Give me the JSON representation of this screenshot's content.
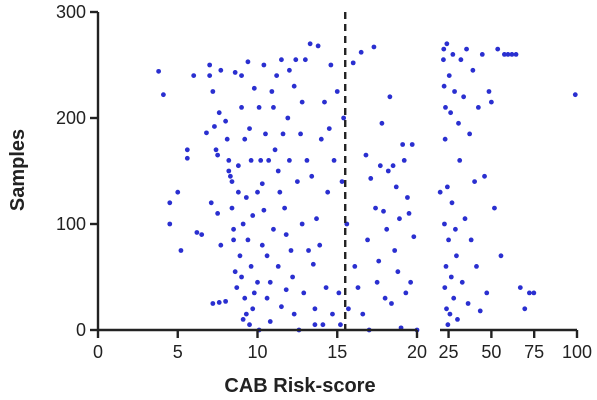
{
  "chart_data": {
    "type": "scatter",
    "xlabel": "CAB Risk-score",
    "ylabel": "Samples",
    "grid": false,
    "y_range": [
      0,
      300
    ],
    "y_ticks": [
      "0",
      "100",
      "200",
      "300"
    ],
    "x_segments": [
      {
        "range": [
          0,
          20
        ],
        "ticks": [
          "0",
          "5",
          "10",
          "15",
          "20"
        ]
      },
      {
        "range": [
          20,
          100
        ],
        "ticks": [
          "25",
          "50",
          "75",
          "100"
        ]
      }
    ],
    "cutoff_x": 15.5,
    "marker_color": "#2a2fd0",
    "points": [
      [
        3.8,
        244
      ],
      [
        4.1,
        222
      ],
      [
        4.5,
        120
      ],
      [
        4.5,
        100
      ],
      [
        5.0,
        130
      ],
      [
        5.2,
        75
      ],
      [
        5.6,
        170
      ],
      [
        5.6,
        162
      ],
      [
        6.0,
        240
      ],
      [
        6.2,
        92
      ],
      [
        6.5,
        90
      ],
      [
        6.8,
        186
      ],
      [
        7.0,
        250
      ],
      [
        7.0,
        240
      ],
      [
        7.1,
        120
      ],
      [
        7.2,
        225
      ],
      [
        7.3,
        192
      ],
      [
        7.4,
        170
      ],
      [
        7.5,
        165
      ],
      [
        7.5,
        110
      ],
      [
        7.6,
        205
      ],
      [
        7.7,
        245
      ],
      [
        7.7,
        80
      ],
      [
        7.2,
        25
      ],
      [
        7.6,
        26
      ],
      [
        8.0,
        27
      ],
      [
        8.0,
        197
      ],
      [
        8.1,
        180
      ],
      [
        8.2,
        160
      ],
      [
        8.2,
        150
      ],
      [
        8.3,
        145
      ],
      [
        8.4,
        140
      ],
      [
        8.4,
        115
      ],
      [
        8.5,
        95
      ],
      [
        8.5,
        85
      ],
      [
        8.6,
        243
      ],
      [
        8.6,
        55
      ],
      [
        8.7,
        40
      ],
      [
        8.8,
        155
      ],
      [
        8.8,
        130
      ],
      [
        8.9,
        70
      ],
      [
        9.0,
        240
      ],
      [
        9.0,
        210
      ],
      [
        9.0,
        50
      ],
      [
        9.1,
        100
      ],
      [
        9.1,
        10
      ],
      [
        9.2,
        180
      ],
      [
        9.2,
        30
      ],
      [
        9.3,
        125
      ],
      [
        9.3,
        15
      ],
      [
        9.4,
        253
      ],
      [
        9.4,
        85
      ],
      [
        9.5,
        190
      ],
      [
        9.5,
        5
      ],
      [
        9.6,
        160
      ],
      [
        9.6,
        60
      ],
      [
        9.7,
        108
      ],
      [
        9.7,
        20
      ],
      [
        9.8,
        228
      ],
      [
        9.8,
        35
      ],
      [
        10.0,
        130
      ],
      [
        10.0,
        45
      ],
      [
        10.1,
        210
      ],
      [
        10.1,
        0
      ],
      [
        10.2,
        160
      ],
      [
        10.3,
        138
      ],
      [
        10.3,
        80
      ],
      [
        10.4,
        250
      ],
      [
        10.4,
        113
      ],
      [
        10.5,
        185
      ],
      [
        10.6,
        70
      ],
      [
        10.6,
        30
      ],
      [
        10.7,
        160
      ],
      [
        10.8,
        45
      ],
      [
        10.8,
        8
      ],
      [
        10.9,
        225
      ],
      [
        11.0,
        210
      ],
      [
        11.0,
        95
      ],
      [
        11.1,
        170
      ],
      [
        11.2,
        240
      ],
      [
        11.3,
        150
      ],
      [
        11.3,
        60
      ],
      [
        11.4,
        130
      ],
      [
        11.5,
        255
      ],
      [
        11.5,
        22
      ],
      [
        11.6,
        185
      ],
      [
        11.7,
        115
      ],
      [
        11.8,
        90
      ],
      [
        11.8,
        38
      ],
      [
        11.9,
        200
      ],
      [
        12.0,
        245
      ],
      [
        12.0,
        160
      ],
      [
        12.1,
        75
      ],
      [
        12.2,
        50
      ],
      [
        12.3,
        230
      ],
      [
        12.3,
        15
      ],
      [
        12.4,
        255
      ],
      [
        12.5,
        140
      ],
      [
        12.6,
        0
      ],
      [
        12.7,
        185
      ],
      [
        12.8,
        215
      ],
      [
        12.8,
        100
      ],
      [
        12.9,
        35
      ],
      [
        13.0,
        255
      ],
      [
        13.1,
        160
      ],
      [
        13.2,
        75
      ],
      [
        13.3,
        270
      ],
      [
        13.4,
        145
      ],
      [
        13.5,
        62
      ],
      [
        13.6,
        20
      ],
      [
        13.6,
        5
      ],
      [
        13.7,
        105
      ],
      [
        13.8,
        268
      ],
      [
        13.9,
        80
      ],
      [
        14.0,
        180
      ],
      [
        14.1,
        5
      ],
      [
        14.2,
        215
      ],
      [
        14.3,
        40
      ],
      [
        14.4,
        130
      ],
      [
        14.5,
        190
      ],
      [
        14.6,
        250
      ],
      [
        14.7,
        15
      ],
      [
        14.8,
        160
      ],
      [
        15.0,
        225
      ],
      [
        15.1,
        35
      ],
      [
        15.2,
        5
      ],
      [
        15.3,
        140
      ],
      [
        15.4,
        200
      ],
      [
        15.6,
        100
      ],
      [
        15.7,
        20
      ],
      [
        16.0,
        252
      ],
      [
        16.1,
        60
      ],
      [
        16.3,
        40
      ],
      [
        16.5,
        262
      ],
      [
        16.6,
        15
      ],
      [
        16.8,
        165
      ],
      [
        16.9,
        85
      ],
      [
        17.0,
        0
      ],
      [
        17.1,
        143
      ],
      [
        17.3,
        267
      ],
      [
        17.4,
        115
      ],
      [
        17.5,
        45
      ],
      [
        17.6,
        65
      ],
      [
        17.7,
        155
      ],
      [
        17.8,
        195
      ],
      [
        17.9,
        112
      ],
      [
        18.0,
        30
      ],
      [
        18.1,
        95
      ],
      [
        18.2,
        150
      ],
      [
        18.3,
        220
      ],
      [
        18.4,
        25
      ],
      [
        18.5,
        155
      ],
      [
        18.6,
        75
      ],
      [
        18.7,
        135
      ],
      [
        18.8,
        55
      ],
      [
        18.9,
        105
      ],
      [
        19.0,
        2
      ],
      [
        19.1,
        175
      ],
      [
        19.2,
        160
      ],
      [
        19.3,
        35
      ],
      [
        19.4,
        125
      ],
      [
        19.5,
        110
      ],
      [
        19.6,
        45
      ],
      [
        19.7,
        175
      ],
      [
        19.8,
        88
      ],
      [
        20.0,
        0
      ],
      [
        20.1,
        130
      ],
      [
        22.0,
        255
      ],
      [
        22.2,
        265
      ],
      [
        22.4,
        230
      ],
      [
        22.6,
        100
      ],
      [
        22.8,
        40
      ],
      [
        23.0,
        180
      ],
      [
        23.2,
        210
      ],
      [
        23.5,
        60
      ],
      [
        23.8,
        20
      ],
      [
        24.0,
        270
      ],
      [
        24.3,
        135
      ],
      [
        24.6,
        5
      ],
      [
        25.0,
        85
      ],
      [
        25.4,
        240
      ],
      [
        25.8,
        15
      ],
      [
        26.2,
        205
      ],
      [
        26.6,
        50
      ],
      [
        27.0,
        120
      ],
      [
        27.5,
        260
      ],
      [
        28.0,
        30
      ],
      [
        28.5,
        225
      ],
      [
        29.0,
        95
      ],
      [
        29.6,
        70
      ],
      [
        30.2,
        10
      ],
      [
        30.8,
        195
      ],
      [
        31.5,
        160
      ],
      [
        32.2,
        255
      ],
      [
        33.0,
        45
      ],
      [
        33.8,
        220
      ],
      [
        34.6,
        105
      ],
      [
        35.5,
        265
      ],
      [
        36.4,
        25
      ],
      [
        37.3,
        185
      ],
      [
        38.2,
        85
      ],
      [
        39.2,
        245
      ],
      [
        40.2,
        140
      ],
      [
        41.3,
        60
      ],
      [
        42.4,
        210
      ],
      [
        43.5,
        18
      ],
      [
        44.7,
        260
      ],
      [
        46.0,
        145
      ],
      [
        47.3,
        35
      ],
      [
        48.6,
        225
      ],
      [
        50.0,
        215
      ],
      [
        51.8,
        115
      ],
      [
        53.7,
        265
      ],
      [
        55.6,
        70
      ],
      [
        57.6,
        260
      ],
      [
        59.7,
        260
      ],
      [
        62.0,
        260
      ],
      [
        64.4,
        260
      ],
      [
        66.9,
        40
      ],
      [
        69.5,
        20
      ],
      [
        72.2,
        35
      ],
      [
        74.8,
        35
      ],
      [
        99.0,
        222
      ]
    ]
  }
}
